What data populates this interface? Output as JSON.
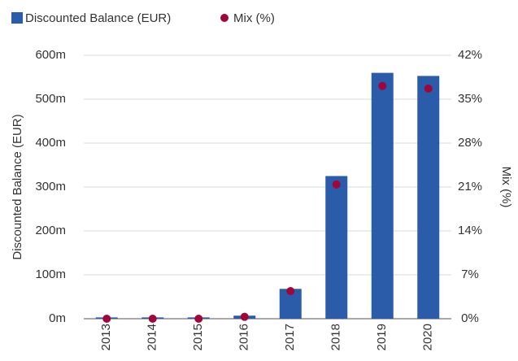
{
  "chart_data": {
    "type": "bar",
    "categories": [
      "2013",
      "2014",
      "2015",
      "2016",
      "2017",
      "2018",
      "2019",
      "2020"
    ],
    "series": [
      {
        "name": "Discounted Balance (EUR)",
        "type": "bar",
        "color": "#2a5caa",
        "values": [
          3,
          3,
          3,
          7,
          68,
          325,
          560,
          553
        ]
      },
      {
        "name": "Mix (%)",
        "type": "scatter",
        "axis": "y2",
        "color": "#a0063a",
        "values": [
          0,
          0,
          0,
          0.3,
          4.4,
          21.4,
          37.1,
          36.7
        ]
      }
    ],
    "ylabel": "Discounted Balance (EUR)",
    "y2label": "Mix (%)",
    "ylim": [
      0,
      600
    ],
    "yticks": [
      {
        "value": 0,
        "label": "0m"
      },
      {
        "value": 100,
        "label": "100m"
      },
      {
        "value": 200,
        "label": "200m"
      },
      {
        "value": 300,
        "label": "300m"
      },
      {
        "value": 400,
        "label": "400m"
      },
      {
        "value": 500,
        "label": "500m"
      },
      {
        "value": 600,
        "label": "600m"
      }
    ],
    "y2lim": [
      0,
      42
    ],
    "y2ticks": [
      {
        "value": 0,
        "label": "0%"
      },
      {
        "value": 7,
        "label": "7%"
      },
      {
        "value": 14,
        "label": "14%"
      },
      {
        "value": 21,
        "label": "21%"
      },
      {
        "value": 28,
        "label": "28%"
      },
      {
        "value": 35,
        "label": "35%"
      },
      {
        "value": 42,
        "label": "42%"
      }
    ],
    "grid": true
  }
}
